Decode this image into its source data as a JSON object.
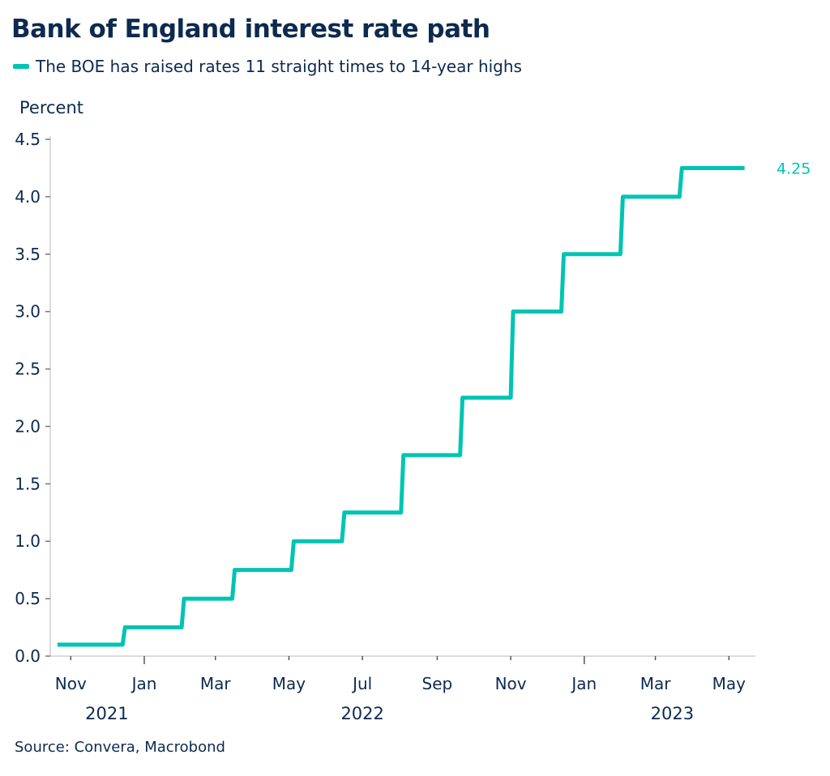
{
  "chart_data": {
    "type": "line",
    "step": true,
    "title": "Bank of England interest rate path",
    "ylabel": "Percent",
    "xlabel": "",
    "source": "Source: Convera, Macrobond",
    "ylim": [
      0,
      4.5
    ],
    "yticks": [
      "0.0",
      "0.5",
      "1.0",
      "1.5",
      "2.0",
      "2.5",
      "3.0",
      "3.5",
      "4.0",
      "4.5"
    ],
    "xlim": [
      "2021-10-15",
      "2023-05-23"
    ],
    "xticks": [
      {
        "date": "2021-11-01",
        "label": "Nov"
      },
      {
        "date": "2022-01-01",
        "label": "Jan",
        "major": true
      },
      {
        "date": "2022-03-01",
        "label": "Mar"
      },
      {
        "date": "2022-05-01",
        "label": "May"
      },
      {
        "date": "2022-07-01",
        "label": "Jul"
      },
      {
        "date": "2022-09-01",
        "label": "Sep"
      },
      {
        "date": "2022-11-01",
        "label": "Nov"
      },
      {
        "date": "2023-01-01",
        "label": "Jan",
        "major": true
      },
      {
        "date": "2023-03-01",
        "label": "Mar"
      },
      {
        "date": "2023-05-01",
        "label": "May"
      }
    ],
    "year_labels": [
      {
        "date": "2021-12-01",
        "label": "2021"
      },
      {
        "date": "2022-07-01",
        "label": "2022"
      },
      {
        "date": "2023-03-15",
        "label": "2023"
      }
    ],
    "grid": false,
    "legend_position": "top-left",
    "series": [
      {
        "name": "The BOE has raised rates 11 straight times to 14-year highs",
        "color": "#00c4b3",
        "end_label": "4.25",
        "points": [
          {
            "date": "2021-10-21",
            "value": 0.1
          },
          {
            "date": "2021-12-16",
            "value": 0.25
          },
          {
            "date": "2022-02-03",
            "value": 0.5
          },
          {
            "date": "2022-03-17",
            "value": 0.75
          },
          {
            "date": "2022-05-05",
            "value": 1.0
          },
          {
            "date": "2022-06-16",
            "value": 1.25
          },
          {
            "date": "2022-08-04",
            "value": 1.75
          },
          {
            "date": "2022-09-22",
            "value": 2.25
          },
          {
            "date": "2022-11-03",
            "value": 3.0
          },
          {
            "date": "2022-12-15",
            "value": 3.5
          },
          {
            "date": "2023-02-02",
            "value": 4.0
          },
          {
            "date": "2023-03-23",
            "value": 4.25
          },
          {
            "date": "2023-05-14",
            "value": 4.25
          }
        ]
      }
    ]
  }
}
